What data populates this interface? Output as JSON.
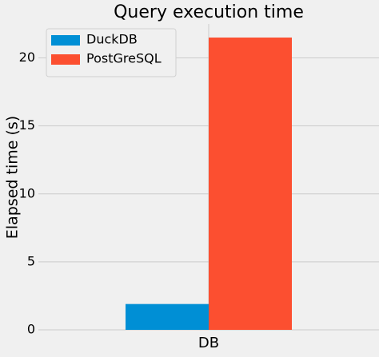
{
  "chart_data": {
    "type": "bar",
    "title": "Query execution time",
    "ylabel": "Elapsed time (s)",
    "categories": [
      "DB"
    ],
    "series": [
      {
        "name": "DuckDB",
        "color": "#008fd5",
        "values": [
          1.9
        ]
      },
      {
        "name": "PostGreSQL",
        "color": "#fc4f30",
        "values": [
          21.5
        ]
      }
    ],
    "ylim": [
      0,
      22.5
    ],
    "yticks": [
      0,
      5,
      10,
      15,
      20
    ],
    "grid": true,
    "legend": "upper left"
  }
}
